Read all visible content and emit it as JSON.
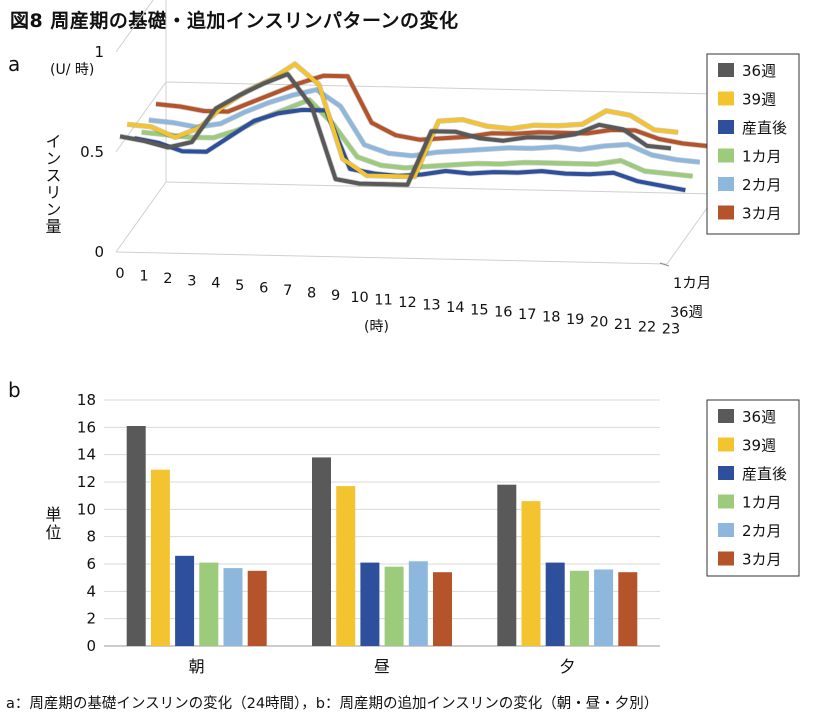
{
  "title": "図8 周産期の基礎・追加インスリンパターンの変化",
  "panel_a_label": "a",
  "panel_b_label": "b",
  "caption": "a：周産期の基礎インスリンの変化（24時間），b：周産期の追加インスリンの変化（朝・昼・夕別）",
  "chart_data": [
    {
      "type": "line",
      "title": "",
      "unit": "(U/ 時)",
      "ylabel": "インスリン量",
      "xlabel": "(時)",
      "x": [
        0,
        1,
        2,
        3,
        4,
        5,
        6,
        7,
        8,
        9,
        10,
        11,
        12,
        13,
        14,
        15,
        16,
        17,
        18,
        19,
        20,
        21,
        22,
        23
      ],
      "ylim": [
        0,
        1
      ],
      "yticks": [
        "0",
        "0.5",
        "1"
      ],
      "depth_labels": [
        "1カ月",
        "36週"
      ],
      "grid": true,
      "legend_position": "right",
      "series": [
        {
          "name": "36週",
          "color": "#595959",
          "values": [
            0.55,
            0.53,
            0.5,
            0.53,
            0.7,
            0.77,
            0.83,
            0.88,
            0.72,
            0.36,
            0.34,
            0.34,
            0.34,
            0.61,
            0.61,
            0.58,
            0.57,
            0.59,
            0.59,
            0.61,
            0.66,
            0.64,
            0.56,
            0.55
          ]
        },
        {
          "name": "39週",
          "color": "#f4c430",
          "values": [
            0.56,
            0.55,
            0.5,
            0.55,
            0.66,
            0.74,
            0.8,
            0.88,
            0.78,
            0.41,
            0.33,
            0.33,
            0.33,
            0.61,
            0.62,
            0.59,
            0.58,
            0.6,
            0.6,
            0.61,
            0.68,
            0.66,
            0.59,
            0.58
          ]
        },
        {
          "name": "産直後",
          "color": "#2e4f9c",
          "values": [
            0.44,
            0.42,
            0.38,
            0.38,
            0.46,
            0.54,
            0.58,
            0.6,
            0.6,
            0.31,
            0.29,
            0.28,
            0.29,
            0.31,
            0.3,
            0.31,
            0.31,
            0.32,
            0.31,
            0.31,
            0.32,
            0.28,
            0.26,
            0.24
          ]
        },
        {
          "name": "1カ月",
          "color": "#9ccb7b",
          "values": [
            0.42,
            0.41,
            0.4,
            0.4,
            0.44,
            0.5,
            0.55,
            0.6,
            0.48,
            0.32,
            0.28,
            0.27,
            0.28,
            0.29,
            0.3,
            0.3,
            0.31,
            0.31,
            0.31,
            0.31,
            0.33,
            0.28,
            0.27,
            0.26
          ]
        },
        {
          "name": "2カ月",
          "color": "#8db7dc",
          "values": [
            0.43,
            0.42,
            0.4,
            0.42,
            0.48,
            0.53,
            0.57,
            0.6,
            0.52,
            0.33,
            0.29,
            0.28,
            0.3,
            0.31,
            0.32,
            0.33,
            0.33,
            0.34,
            0.33,
            0.35,
            0.36,
            0.31,
            0.29,
            0.28
          ]
        },
        {
          "name": "3カ月",
          "color": "#b5532a",
          "values": [
            0.46,
            0.45,
            0.43,
            0.43,
            0.48,
            0.53,
            0.58,
            0.62,
            0.62,
            0.39,
            0.33,
            0.31,
            0.32,
            0.33,
            0.35,
            0.35,
            0.36,
            0.36,
            0.36,
            0.38,
            0.38,
            0.34,
            0.32,
            0.31
          ]
        }
      ]
    },
    {
      "type": "bar",
      "title": "",
      "ylabel": "単位",
      "xlabel": "",
      "categories": [
        "朝",
        "昼",
        "夕"
      ],
      "ylim": [
        0,
        18
      ],
      "yticks": [
        0,
        2,
        4,
        6,
        8,
        10,
        12,
        14,
        16,
        18
      ],
      "grid": true,
      "legend_position": "right",
      "series": [
        {
          "name": "36週",
          "color": "#595959",
          "values": [
            16.1,
            13.8,
            11.8
          ]
        },
        {
          "name": "39週",
          "color": "#f4c430",
          "values": [
            12.9,
            11.7,
            10.6
          ]
        },
        {
          "name": "産直後",
          "color": "#2e4f9c",
          "values": [
            6.6,
            6.1,
            6.1
          ]
        },
        {
          "name": "1カ月",
          "color": "#9ccb7b",
          "values": [
            6.1,
            5.8,
            5.5
          ]
        },
        {
          "name": "2カ月",
          "color": "#8db7dc",
          "values": [
            5.7,
            6.2,
            5.6
          ]
        },
        {
          "name": "3カ月",
          "color": "#b5532a",
          "values": [
            5.5,
            5.4,
            5.4
          ]
        }
      ]
    }
  ]
}
